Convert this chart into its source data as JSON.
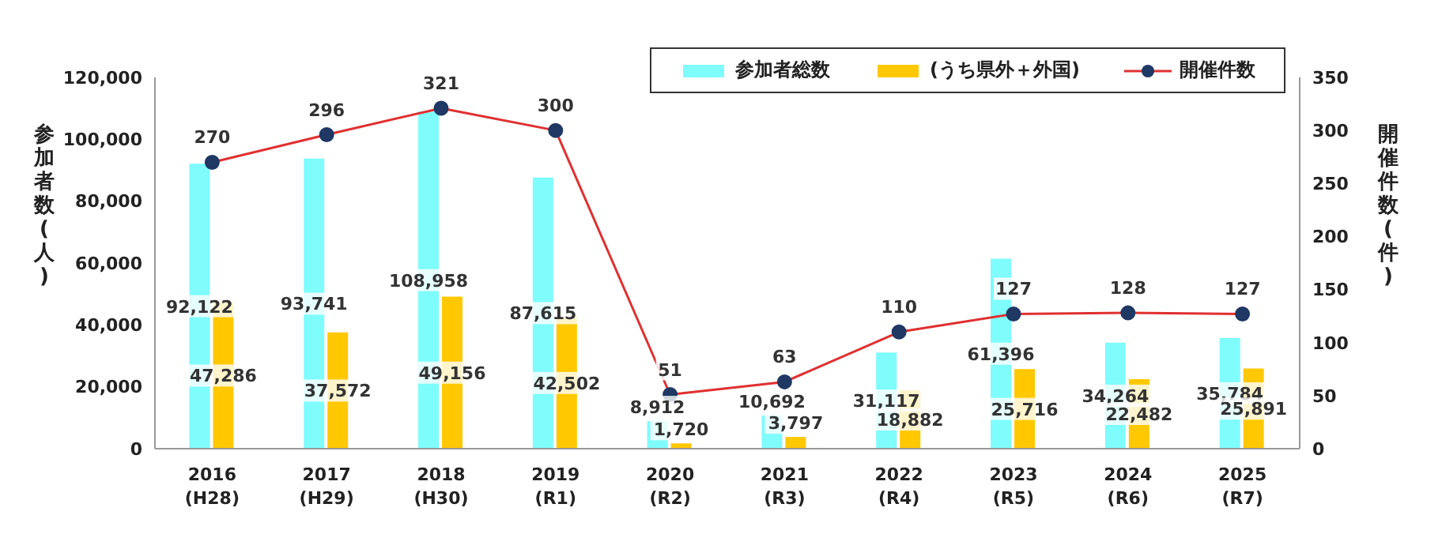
{
  "chart_data": {
    "type": "bar",
    "categories": [
      "2016\n(H28)",
      "2017\n(H29)",
      "2018\n(H30)",
      "2019\n(R1)",
      "2020\n(R2)",
      "2021\n(R3)",
      "2022\n(R4)",
      "2023\n(R5)",
      "2024\n(R6)",
      "2025\n(R7)"
    ],
    "series": [
      {
        "name": "参加者総数",
        "color": "#7ffcfc",
        "values": [
          92122,
          93741,
          108958,
          87615,
          8912,
          10692,
          31117,
          61396,
          34264,
          35784
        ],
        "value_labels": [
          "92,122",
          "93,741",
          "108,958",
          "87,615",
          "8,912",
          "10,692",
          "31,117",
          "61,396",
          "34,264",
          "35,784"
        ]
      },
      {
        "name": "(うち県外＋外国)",
        "color": "#ffc800",
        "values": [
          47286,
          37572,
          49156,
          42502,
          1720,
          3797,
          18882,
          25716,
          22482,
          25891
        ],
        "value_labels": [
          "47,286",
          "37,572",
          "49,156",
          "42,502",
          "1,720",
          "3,797",
          "18,882",
          "25,716",
          "22,482",
          "25,891"
        ]
      },
      {
        "name": "開催件数",
        "type": "line",
        "axis": "y2",
        "color": "#e03030",
        "values": [
          270,
          296,
          321,
          300,
          51,
          63,
          110,
          127,
          128,
          127
        ],
        "value_labels": [
          "270",
          "296",
          "321",
          "300",
          "51",
          "63",
          "110",
          "127",
          "128",
          "127"
        ]
      }
    ],
    "ylabel": "参加者数(人)",
    "y2label": "開催件数(件)",
    "ylim": [
      0,
      120000
    ],
    "yticks": [
      0,
      {
        "value": 20000,
        "label": "20,000"
      },
      {
        "value": 40000,
        "label": "40,000"
      },
      {
        "value": 60000,
        "label": "60,000"
      },
      {
        "value": 80000,
        "label": "80,000"
      },
      {
        "value": 100000,
        "label": "100,000"
      },
      {
        "value": 120000,
        "label": "120,000"
      }
    ],
    "y2lim": [
      0,
      350
    ],
    "y2ticks": [
      0,
      50,
      100,
      150,
      200,
      250,
      300,
      350
    ],
    "legend": "top right",
    "grid": false,
    "marker": "circle"
  }
}
